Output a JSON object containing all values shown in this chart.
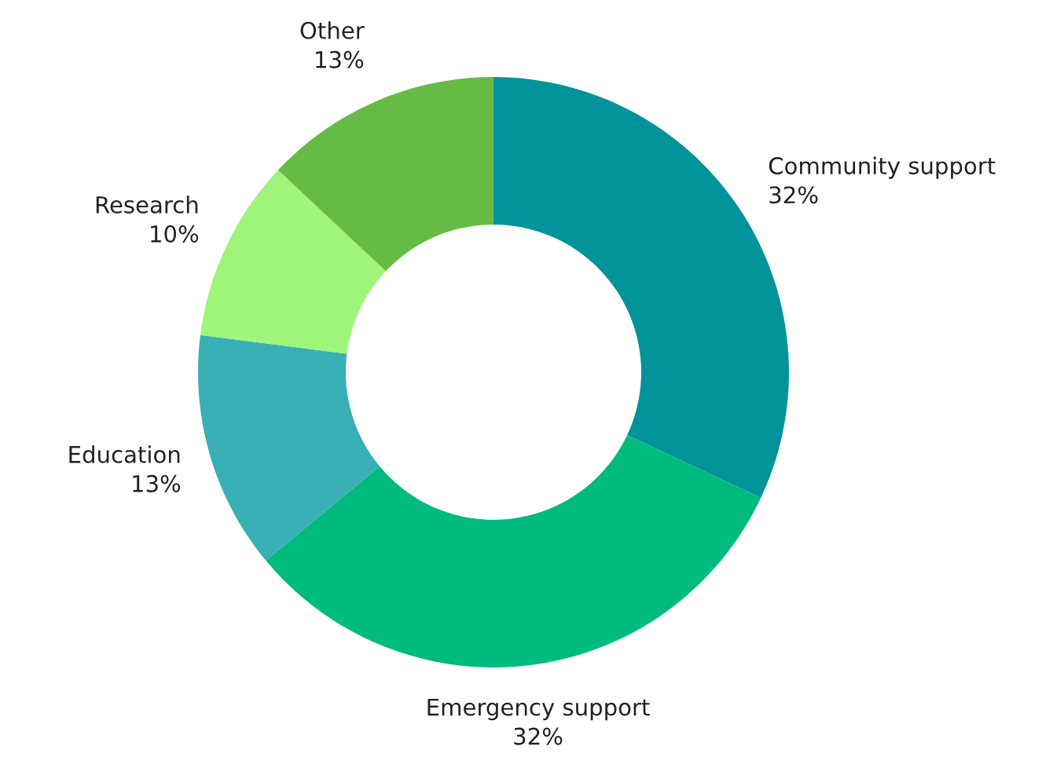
{
  "chart_data": {
    "type": "donut",
    "categories": [
      "Community support",
      "Emergency support",
      "Education",
      "Research",
      "Other"
    ],
    "values": [
      32,
      32,
      13,
      10,
      13
    ],
    "value_labels": [
      "32%",
      "32%",
      "13%",
      "10%",
      "13%"
    ],
    "colors": [
      "#00939a",
      "#00bb7e",
      "#38b0b5",
      "#9ef57a",
      "#66bb44"
    ],
    "legend": false
  }
}
